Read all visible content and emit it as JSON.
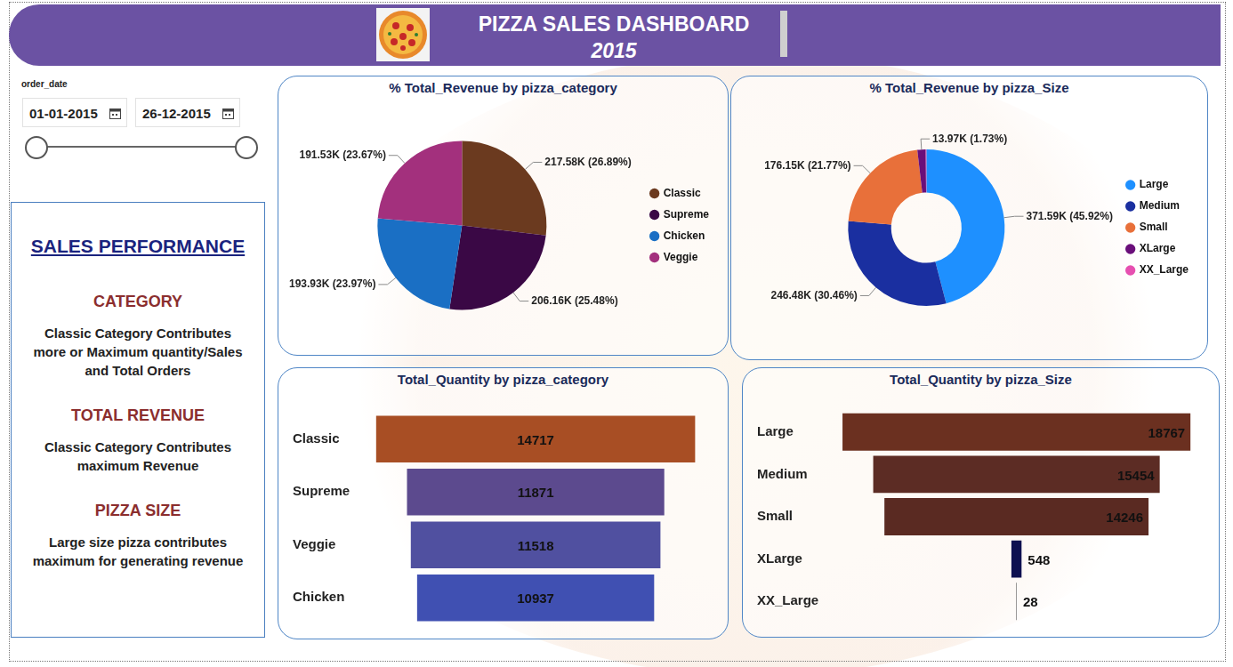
{
  "header": {
    "title": "PIZZA SALES DASHBOARD",
    "subtitle": "2015"
  },
  "slicer": {
    "label": "order_date",
    "start": "01-01-2015",
    "end": "26-12-2015"
  },
  "panel": {
    "title": "SALES PERFORMANCE",
    "sections": [
      {
        "heading": "CATEGORY",
        "text": "Classic Category Contributes more or Maximum quantity/Sales and Total Orders"
      },
      {
        "heading": "TOTAL REVENUE",
        "text": "Classic Category Contributes maximum Revenue"
      },
      {
        "heading": "PIZZA SIZE",
        "text": "Large size pizza contributes maximum for generating revenue"
      }
    ]
  },
  "chart_data": [
    {
      "type": "pie",
      "title": "% Total_Revenue by pizza_category",
      "categories": [
        "Classic",
        "Supreme",
        "Chicken",
        "Veggie"
      ],
      "values": [
        217580,
        206160,
        193930,
        191530
      ],
      "value_labels": [
        "217.58K (26.89%)",
        "206.16K (25.48%)",
        "193.93K (23.97%)",
        "191.53K (23.67%)"
      ],
      "colors": [
        "#6B3A1F",
        "#3A0845",
        "#1A6FC4",
        "#A3307D"
      ],
      "legend": "right",
      "data_labels": true
    },
    {
      "type": "doughnut",
      "title": "% Total_Revenue by pizza_Size",
      "categories": [
        "Large",
        "Medium",
        "Small",
        "XLarge",
        "XX_Large"
      ],
      "values": [
        371590,
        246480,
        176150,
        13970,
        1010
      ],
      "value_labels": [
        "371.59K (45.92%)",
        "246.48K (30.46%)",
        "176.15K (21.77%)",
        "13.97K (1.73%)",
        null
      ],
      "colors": [
        "#1E90FF",
        "#1A2FA0",
        "#E8703A",
        "#6A0F7A",
        "#E64FB0"
      ],
      "legend": "right",
      "data_labels": true
    },
    {
      "type": "bar",
      "title": "Total_Quantity by pizza_category",
      "orientation": "horizontal",
      "categories": [
        "Classic",
        "Supreme",
        "Veggie",
        "Chicken"
      ],
      "values": [
        14717,
        11871,
        11518,
        10937
      ],
      "colors": [
        "#A84E24",
        "#5C4A8E",
        "#5050A0",
        "#4050B2"
      ],
      "data_labels": true,
      "tick_labels": "y",
      "grid": false
    },
    {
      "type": "bar",
      "title": "Total_Quantity by pizza_Size",
      "orientation": "horizontal",
      "categories": [
        "Large",
        "Medium",
        "Small",
        "XLarge",
        "XX_Large"
      ],
      "values": [
        18767,
        15454,
        14246,
        548,
        28
      ],
      "colors": [
        "#6B3020",
        "#5C2C24",
        "#5A2A22",
        "#0E1050",
        "#555555"
      ],
      "data_labels": true,
      "tick_labels": "y",
      "grid": false
    }
  ]
}
